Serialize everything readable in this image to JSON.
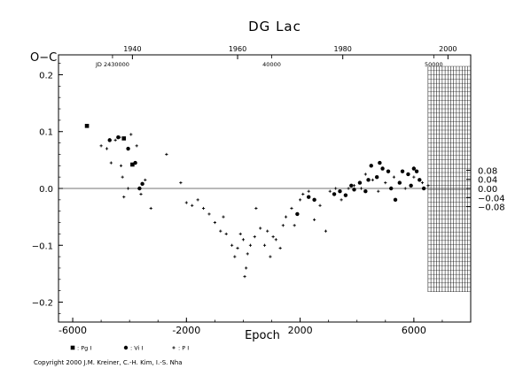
{
  "chart_data": {
    "type": "scatter",
    "title": "DG Lac",
    "xlabel": "Epoch",
    "ylabel": "O−C",
    "xlim": [
      -6500,
      8000
    ],
    "ylim": [
      -0.235,
      0.235
    ],
    "x_ticks": [
      -6000,
      -2000,
      2000,
      6000
    ],
    "y_ticks_left": [
      0.2,
      0.1,
      0.0,
      -0.1,
      -0.2
    ],
    "y_ticks_left_labels": [
      "0.2",
      "0.1",
      "0.0",
      "−0.1",
      "−0.2"
    ],
    "y_ticks_right": [
      0.08,
      0.04,
      0.0,
      -0.04,
      -0.08
    ],
    "y_ticks_right_labels": [
      "0.08",
      "0.04",
      "0.00",
      "−0.04",
      "−0.08"
    ],
    "top_year_ticks": [
      {
        "label": "1940",
        "x": -3900
      },
      {
        "label": "1960",
        "x": -200
      },
      {
        "label": "1980",
        "x": 3500
      },
      {
        "label": "2000",
        "x": 7200
      }
    ],
    "top_jd_labels": [
      {
        "label": "JD 2430000",
        "x": -4600
      },
      {
        "label": "40000",
        "x": 1000
      },
      {
        "label": "50000",
        "x": 6700
      }
    ],
    "zero_line": 0.0,
    "grid": false,
    "hatched_region_x": [
      6500,
      8000
    ],
    "series": [
      {
        "name": "Pg I",
        "marker": "square",
        "points": [
          [
            -5500,
            0.11
          ],
          [
            -4200,
            0.088
          ],
          [
            -3900,
            0.042
          ]
        ]
      },
      {
        "name": "Vi I",
        "marker": "dot",
        "points": [
          [
            -4700,
            0.085
          ],
          [
            -4400,
            0.09
          ],
          [
            -4050,
            0.07
          ],
          [
            -3800,
            0.045
          ],
          [
            -3650,
            0.0
          ],
          [
            -3550,
            0.008
          ],
          [
            1900,
            -0.045
          ],
          [
            2300,
            -0.015
          ],
          [
            2500,
            -0.02
          ],
          [
            3200,
            -0.01
          ],
          [
            3400,
            -0.005
          ],
          [
            3600,
            -0.012
          ],
          [
            3800,
            0.005
          ],
          [
            3900,
            -0.002
          ],
          [
            4100,
            0.01
          ],
          [
            4300,
            -0.005
          ],
          [
            4400,
            0.015
          ],
          [
            4500,
            0.04
          ],
          [
            4700,
            0.02
          ],
          [
            4800,
            0.045
          ],
          [
            4900,
            0.035
          ],
          [
            5100,
            0.03
          ],
          [
            5200,
            0.0
          ],
          [
            5350,
            -0.02
          ],
          [
            5500,
            0.01
          ],
          [
            5600,
            0.03
          ],
          [
            5800,
            0.025
          ],
          [
            5900,
            0.005
          ],
          [
            6000,
            0.035
          ],
          [
            6100,
            0.03
          ],
          [
            6200,
            0.015
          ],
          [
            6350,
            0.0
          ]
        ]
      },
      {
        "name": "P I",
        "marker": "plus",
        "points": [
          [
            -5000,
            0.075
          ],
          [
            -4800,
            0.07
          ],
          [
            -4650,
            0.045
          ],
          [
            -4500,
            0.085
          ],
          [
            -4350,
            0.09
          ],
          [
            -4300,
            0.04
          ],
          [
            -4250,
            0.02
          ],
          [
            -4200,
            -0.015
          ],
          [
            -4050,
            0.0
          ],
          [
            -3950,
            0.095
          ],
          [
            -3750,
            0.075
          ],
          [
            -3600,
            -0.01
          ],
          [
            -3450,
            0.015
          ],
          [
            -3250,
            -0.035
          ],
          [
            -2700,
            0.06
          ],
          [
            -2200,
            0.01
          ],
          [
            -2000,
            -0.025
          ],
          [
            -1800,
            -0.03
          ],
          [
            -1600,
            -0.02
          ],
          [
            -1400,
            -0.035
          ],
          [
            -1200,
            -0.045
          ],
          [
            -1000,
            -0.06
          ],
          [
            -800,
            -0.075
          ],
          [
            -700,
            -0.05
          ],
          [
            -600,
            -0.08
          ],
          [
            -400,
            -0.1
          ],
          [
            -300,
            -0.12
          ],
          [
            -200,
            -0.105
          ],
          [
            -100,
            -0.08
          ],
          [
            0,
            -0.09
          ],
          [
            50,
            -0.155
          ],
          [
            100,
            -0.14
          ],
          [
            150,
            -0.115
          ],
          [
            250,
            -0.1
          ],
          [
            400,
            -0.085
          ],
          [
            450,
            -0.035
          ],
          [
            600,
            -0.07
          ],
          [
            750,
            -0.1
          ],
          [
            850,
            -0.075
          ],
          [
            950,
            -0.12
          ],
          [
            1050,
            -0.085
          ],
          [
            1150,
            -0.09
          ],
          [
            1300,
            -0.105
          ],
          [
            1400,
            -0.065
          ],
          [
            1500,
            -0.05
          ],
          [
            1700,
            -0.035
          ],
          [
            1800,
            -0.065
          ],
          [
            2000,
            -0.02
          ],
          [
            2100,
            -0.01
          ],
          [
            2300,
            -0.005
          ],
          [
            2500,
            -0.055
          ],
          [
            2700,
            -0.03
          ],
          [
            2900,
            -0.075
          ],
          [
            3050,
            -0.005
          ],
          [
            3250,
            0.0
          ],
          [
            3450,
            -0.02
          ],
          [
            3700,
            0.0
          ],
          [
            3900,
            0.005
          ],
          [
            4150,
            0.0
          ],
          [
            4300,
            0.025
          ],
          [
            4550,
            0.015
          ],
          [
            4750,
            -0.005
          ],
          [
            5000,
            0.01
          ],
          [
            5300,
            0.02
          ],
          [
            5700,
            0.0
          ],
          [
            6000,
            0.02
          ],
          [
            6300,
            0.01
          ],
          [
            6500,
            0.005
          ]
        ]
      }
    ],
    "legend": {
      "placement": "bottom-left",
      "items": [
        {
          "marker": "square",
          "label": ": Pg I"
        },
        {
          "marker": "dot",
          "label": ": Vi I"
        },
        {
          "marker": "plus",
          "label": ": P I"
        }
      ]
    }
  },
  "copyright": "Copyright 2000 J.M. Kreiner, C.-H. Kim, I.-S. Nha",
  "colors": {
    "ink": "#000000",
    "background": "#ffffff",
    "zero_line": "#444444"
  }
}
